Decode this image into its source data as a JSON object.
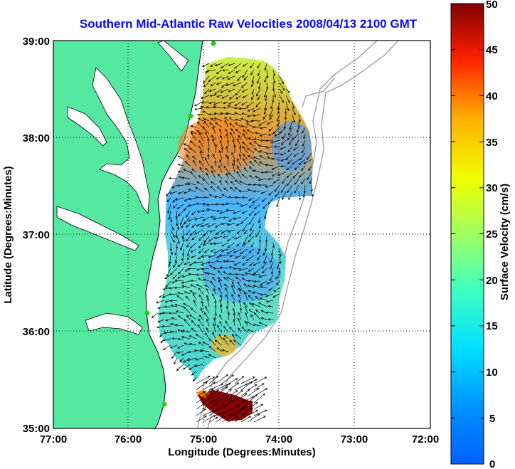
{
  "title": "Southern Mid-Atlantic Raw Velocities 2008/04/13 2100 GMT",
  "x_axis": {
    "label": "Longitude (Degrees:Minutes)",
    "ticks": [
      "77:00",
      "76:00",
      "75:00",
      "74:00",
      "73:00",
      "72:00"
    ]
  },
  "y_axis": {
    "label": "Latitude (Degrees:Minutes)",
    "ticks": [
      "39:00",
      "38:00",
      "37:00",
      "36:00",
      "35:00"
    ]
  },
  "colorbar": {
    "label": "Surface Velocity (cm/s)",
    "ticks": [
      "50",
      "45",
      "40",
      "35",
      "30",
      "25",
      "20",
      "15",
      "10",
      "5",
      "0"
    ]
  },
  "colors": {
    "title": "#0a0af0",
    "land": "#55e8a0",
    "coastline": "#000000",
    "bathymetry": "#9a9a9a",
    "station": "#22cc22",
    "grid": "#000000"
  }
}
